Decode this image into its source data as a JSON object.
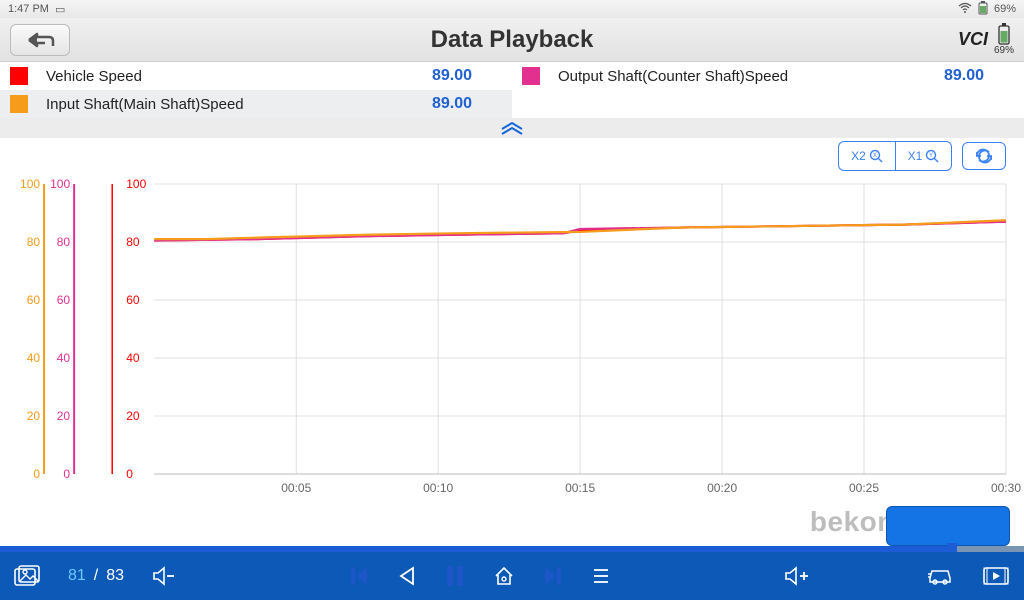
{
  "status": {
    "time": "1:47 PM",
    "battery_pct": "69%",
    "battery_top": "69%"
  },
  "header": {
    "title": "Data Playback",
    "vci": "VCI",
    "battery_label": "69%"
  },
  "legend": {
    "row1": [
      {
        "name": "Vehicle Speed",
        "value": "89.00",
        "color": "#ff0000"
      },
      {
        "name": "Output Shaft(Counter Shaft)Speed",
        "value": "89.00",
        "color": "#e23090"
      }
    ],
    "row2": [
      {
        "name": "Input Shaft(Main Shaft)Speed",
        "value": "89.00",
        "color": "#f59c1a"
      }
    ]
  },
  "toolbar": {
    "zoom1": "X2",
    "zoom2": "X1"
  },
  "chart": {
    "type": "line",
    "left_axes": [
      {
        "color": "#f59c1a",
        "ticks": [
          0,
          20,
          40,
          60,
          80,
          100
        ]
      },
      {
        "color": "#e23090",
        "ticks": [
          0,
          20,
          40,
          60,
          80,
          100
        ]
      },
      {
        "color": "#ff0000",
        "ticks": [
          0,
          20,
          40,
          60,
          80,
          100
        ]
      }
    ],
    "x_labels": [
      "00:05",
      "00:10",
      "00:15",
      "00:20",
      "00:25",
      "00:30"
    ],
    "x_positions": [
      0.1667,
      0.3333,
      0.5,
      0.6667,
      0.8333,
      1.0
    ],
    "ylim": [
      0,
      100
    ],
    "grid_color": "#e0e0e0",
    "series": [
      {
        "color": "#ff0000",
        "points": [
          [
            0,
            80.5
          ],
          [
            0.12,
            81
          ],
          [
            0.25,
            82
          ],
          [
            0.35,
            82.5
          ],
          [
            0.48,
            83
          ],
          [
            0.5,
            84
          ],
          [
            0.62,
            85
          ],
          [
            0.75,
            85.5
          ],
          [
            0.88,
            86
          ],
          [
            1,
            87
          ]
        ]
      },
      {
        "color": "#e23090",
        "points": [
          [
            0,
            80.5
          ],
          [
            0.12,
            81
          ],
          [
            0.25,
            82
          ],
          [
            0.35,
            82.5
          ],
          [
            0.48,
            83
          ],
          [
            0.5,
            84.5
          ],
          [
            0.62,
            85
          ],
          [
            0.75,
            85.5
          ],
          [
            0.88,
            86
          ],
          [
            1,
            87
          ]
        ]
      },
      {
        "color": "#f59c1a",
        "points": [
          [
            0,
            81
          ],
          [
            0.06,
            81
          ],
          [
            0.12,
            81.5
          ],
          [
            0.25,
            82.5
          ],
          [
            0.35,
            83
          ],
          [
            0.5,
            83.5
          ],
          [
            0.62,
            85
          ],
          [
            0.75,
            85.5
          ],
          [
            0.88,
            86
          ],
          [
            1,
            87.5
          ]
        ]
      }
    ]
  },
  "playback": {
    "progress": 0.93,
    "current": "81",
    "total": "83"
  },
  "watermark": "bekomcar.com"
}
